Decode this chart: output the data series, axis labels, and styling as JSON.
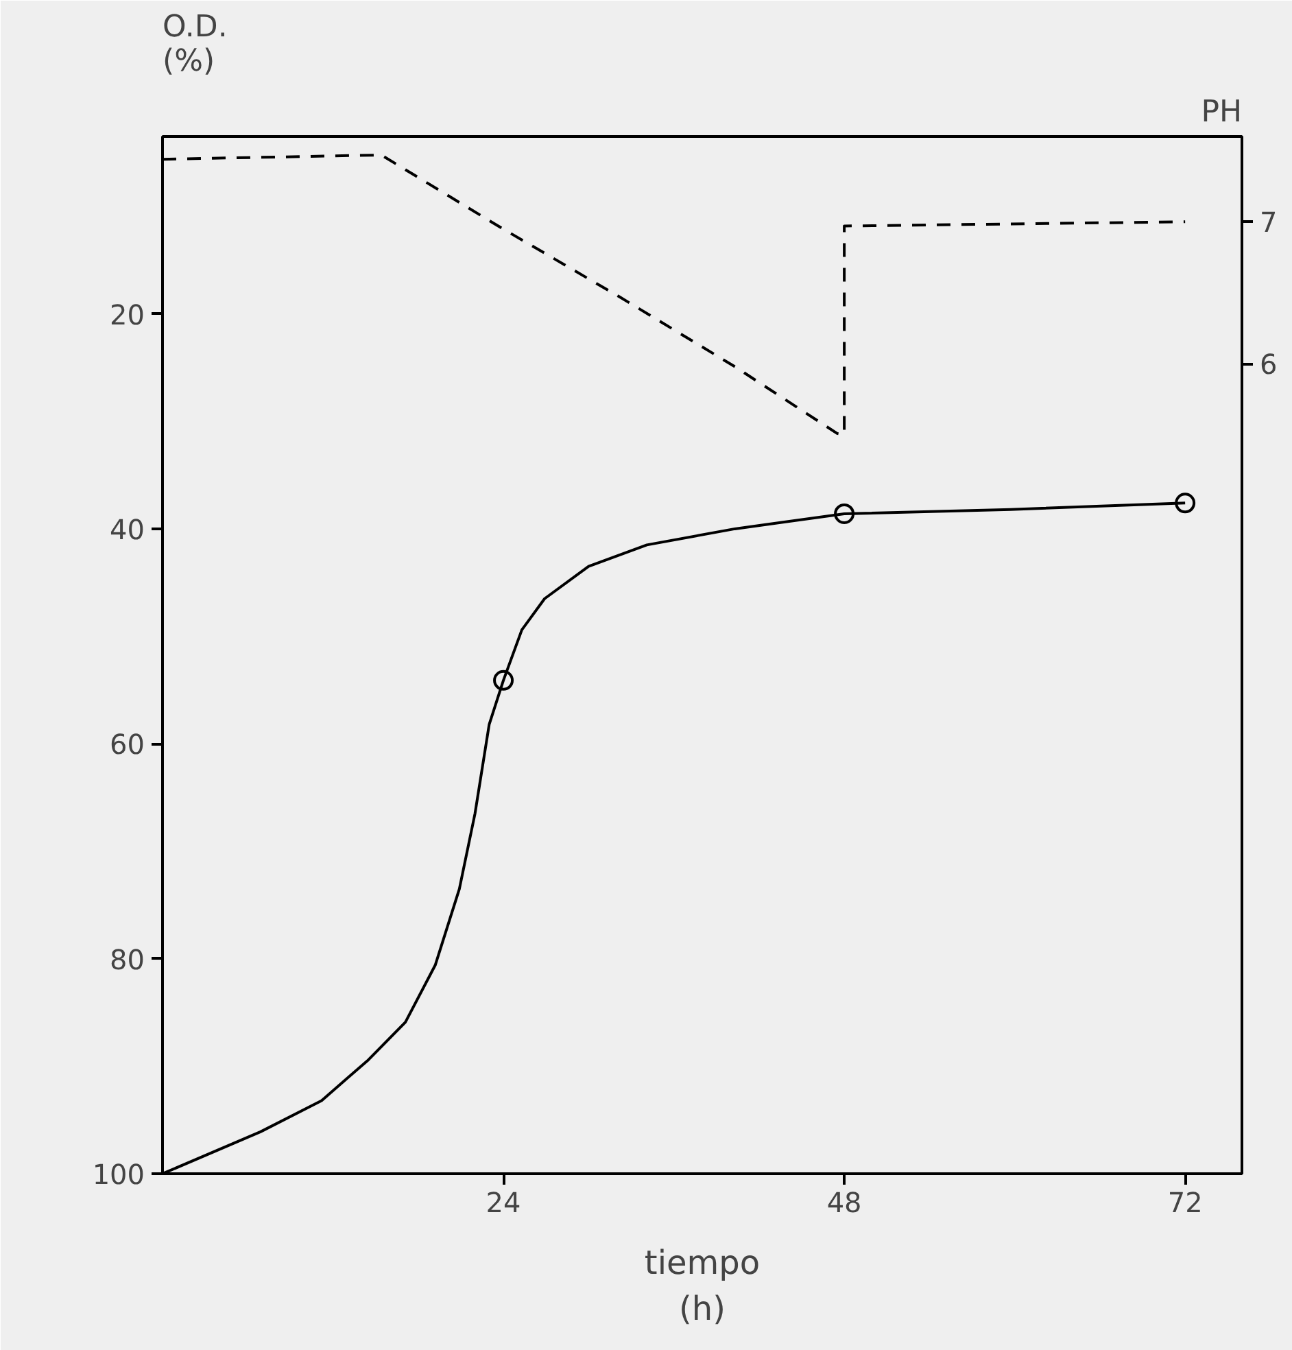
{
  "chart_data": {
    "type": "line",
    "ylabel": "O.D.\n(%)",
    "y2label": "PH",
    "xlabel": "tiempo\n(h)",
    "xlim": [
      0,
      76
    ],
    "xticks": [
      24,
      48,
      72
    ],
    "ylim": [
      100,
      3.5
    ],
    "yticks": [
      20,
      40,
      60,
      80,
      100
    ],
    "y2lim": [
      0.3,
      7.6
    ],
    "y2ticks": [
      6,
      7
    ],
    "grid": false,
    "series": [
      {
        "color": "#000000",
        "line_style": "solid",
        "x": [
          0,
          6.9,
          11.2,
          14.5,
          17.1,
          19.2,
          20.9,
          22.0,
          23.0,
          24,
          25.3,
          26.9,
          30,
          34.1,
          40.3,
          48,
          59.7,
          72
        ],
        "values": [
          100,
          96.1,
          93.2,
          89.4,
          85.9,
          80.6,
          73.5,
          66.5,
          58.2,
          54.1,
          49.4,
          46.5,
          43.5,
          41.5,
          40,
          38.6,
          38.2,
          37.6
        ]
      },
      {
        "type": "scatter",
        "color": "#000000",
        "marker": "circle",
        "x": [
          24,
          48,
          72
        ],
        "values": [
          54.1,
          38.6,
          37.6
        ]
      },
      {
        "axis": "y2",
        "color": "#000000",
        "line_style": "dashed",
        "x": [
          0,
          15.4,
          23.8,
          32.2,
          40.3,
          47.5,
          48,
          48,
          72
        ],
        "values": [
          7.44,
          7.47,
          6.96,
          6.47,
          5.98,
          5.51,
          5.5,
          6.97,
          7.0
        ]
      }
    ]
  }
}
